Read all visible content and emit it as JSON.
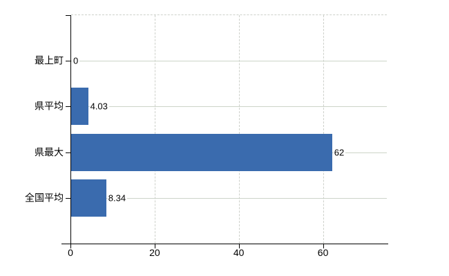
{
  "chart_data": {
    "type": "bar",
    "orientation": "horizontal",
    "title": "",
    "categories": [
      "最上町",
      "県平均",
      "県最大",
      "全国平均"
    ],
    "values": [
      0,
      4.03,
      62,
      8.34
    ],
    "value_labels": [
      "0",
      "4.03",
      "62",
      "8.34"
    ],
    "x_ticks": [
      0,
      20,
      40,
      60
    ],
    "x_tick_labels": [
      "0",
      "20",
      "40",
      "60"
    ],
    "xlim": [
      0,
      75
    ],
    "grid": "solid horizontal line per category, dashed vertical lines at x ticks, dashed top border",
    "legend": "none",
    "colors": {
      "bar": "#3a6bae",
      "category_gridline": "#ccd4c8",
      "dashed_gridline": "#cdd0ca",
      "axis": "#000000",
      "text": "#000000",
      "background": "#ffffff"
    }
  }
}
